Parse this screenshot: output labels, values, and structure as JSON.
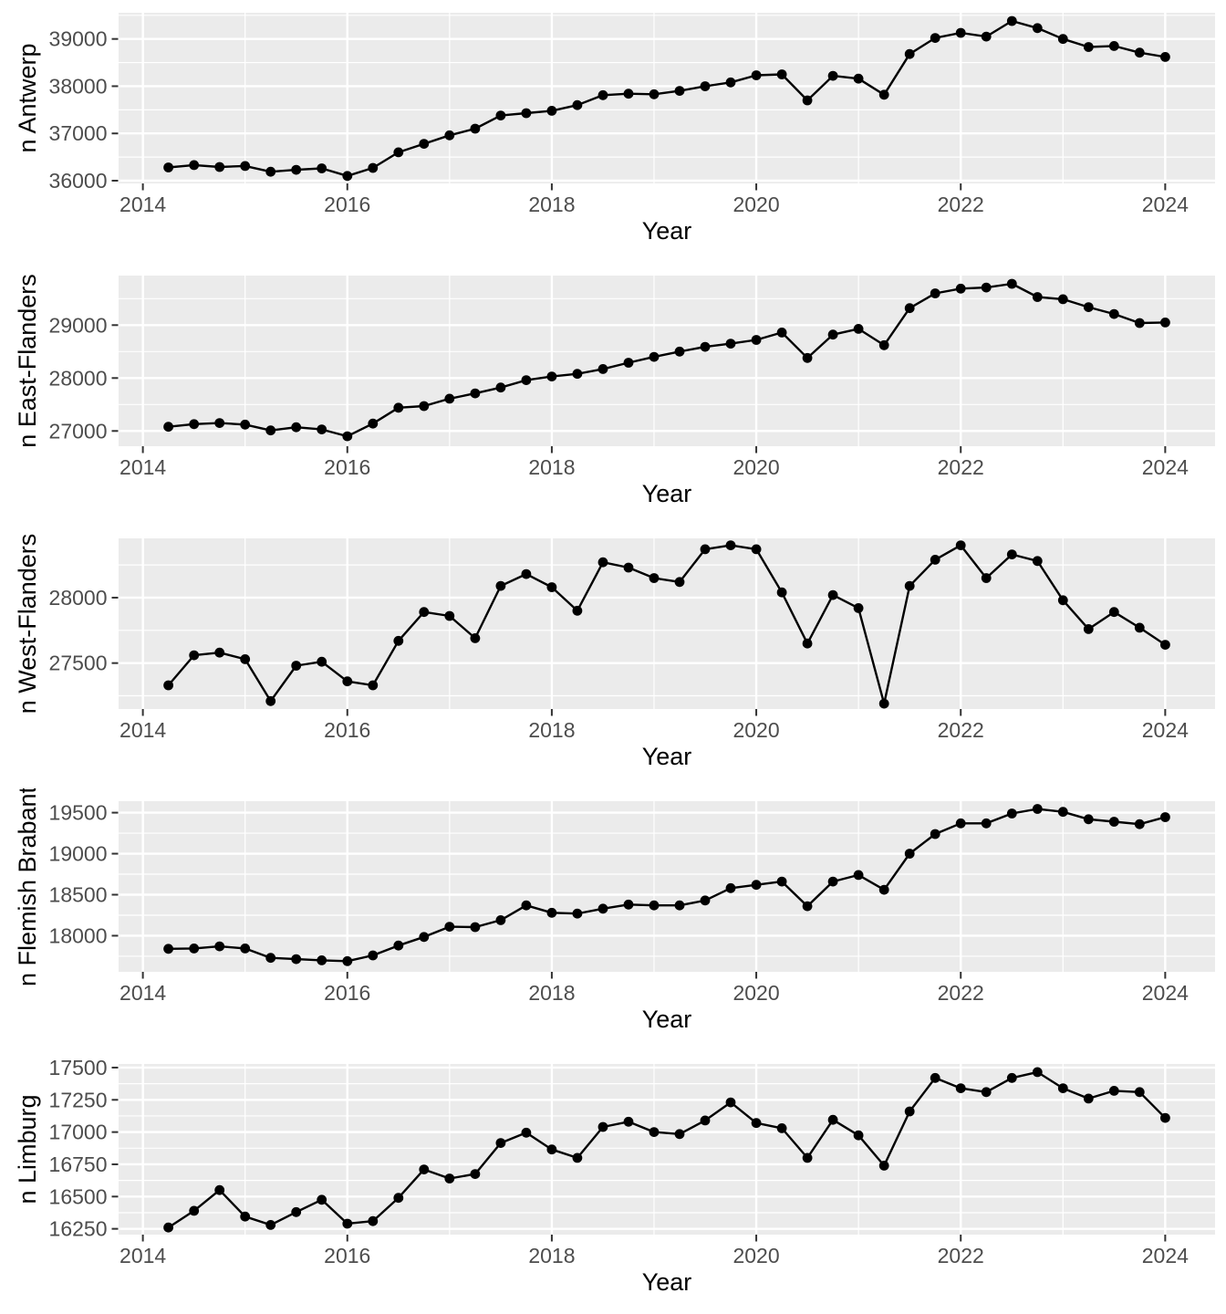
{
  "chart_data": {
    "type": "line",
    "title": "",
    "xlabel": "Year",
    "x": [
      2014.25,
      2014.5,
      2014.75,
      2015.0,
      2015.25,
      2015.5,
      2015.75,
      2016.0,
      2016.25,
      2016.5,
      2016.75,
      2017.0,
      2017.25,
      2017.5,
      2017.75,
      2018.0,
      2018.25,
      2018.5,
      2018.75,
      2019.0,
      2019.25,
      2019.5,
      2019.75,
      2020.0,
      2020.25,
      2020.5,
      2020.75,
      2021.0,
      2021.25,
      2021.5,
      2021.75,
      2022.0,
      2022.25,
      2022.5,
      2022.75,
      2023.0,
      2023.25,
      2023.5,
      2023.75,
      2024.0
    ],
    "xlim": [
      2013.7625,
      2024.4875
    ],
    "xticks": [
      2014,
      2016,
      2018,
      2020,
      2022,
      2024
    ],
    "xtick_labels": [
      "2014",
      "2016",
      "2018",
      "2020",
      "2022",
      "2024"
    ],
    "xminor": [
      2015,
      2017,
      2019,
      2021,
      2023
    ],
    "grid": true,
    "legend": "none",
    "panels": [
      {
        "ylabel": "n Antwerp",
        "ylim": [
          35942,
          39554
        ],
        "yticks": [
          36000,
          37000,
          38000,
          39000
        ],
        "ytick_labels": [
          "36000",
          "37000",
          "38000",
          "39000"
        ],
        "yminor": [
          36500,
          37500,
          38500,
          39500
        ],
        "values": [
          36280,
          36330,
          36290,
          36310,
          36190,
          36230,
          36260,
          36100,
          36270,
          36600,
          36780,
          36960,
          37100,
          37380,
          37430,
          37480,
          37600,
          37810,
          37840,
          37830,
          37900,
          38000,
          38080,
          38230,
          38250,
          37700,
          38220,
          38160,
          37820,
          38680,
          39020,
          39130,
          39050,
          39380,
          39230,
          39000,
          38830,
          38850,
          38710,
          38620
        ]
      },
      {
        "ylabel": "n East-Flanders",
        "ylim": [
          26712,
          29936
        ],
        "yticks": [
          27000,
          28000,
          29000
        ],
        "ytick_labels": [
          "27000",
          "28000",
          "29000"
        ],
        "yminor": [
          27500,
          28500,
          29500
        ],
        "values": [
          27080,
          27130,
          27150,
          27120,
          27010,
          27070,
          27030,
          26900,
          27140,
          27440,
          27470,
          27610,
          27710,
          27820,
          27960,
          28030,
          28080,
          28170,
          28290,
          28400,
          28500,
          28590,
          28650,
          28720,
          28860,
          28380,
          28820,
          28930,
          28620,
          29320,
          29600,
          29690,
          29710,
          29780,
          29530,
          29490,
          29340,
          29210,
          29040,
          29050
        ]
      },
      {
        "ylabel": "n West-Flanders",
        "ylim": [
          27149,
          28453
        ],
        "yticks": [
          27500,
          28000
        ],
        "ytick_labels": [
          "27500",
          "28000"
        ],
        "yminor": [
          27250,
          27750,
          28250
        ],
        "values": [
          27330,
          27560,
          27580,
          27530,
          27210,
          27480,
          27510,
          27360,
          27330,
          27670,
          27890,
          27860,
          27690,
          28090,
          28180,
          28080,
          27900,
          28270,
          28230,
          28150,
          28120,
          28370,
          28400,
          28370,
          28040,
          27650,
          28020,
          27920,
          27190,
          28090,
          28290,
          28400,
          28150,
          28330,
          28280,
          27980,
          27760,
          27890,
          27770,
          27640
        ]
      },
      {
        "ylabel": "n Flemish Brabant",
        "ylim": [
          17560,
          19640
        ],
        "yticks": [
          18000,
          18500,
          19000,
          19500
        ],
        "ytick_labels": [
          "18000",
          "18500",
          "19000",
          "19500"
        ],
        "yminor": [
          17750,
          18250,
          18750,
          19250
        ],
        "values": [
          17840,
          17845,
          17870,
          17845,
          17730,
          17715,
          17700,
          17690,
          17760,
          17880,
          17985,
          18110,
          18105,
          18190,
          18370,
          18280,
          18270,
          18330,
          18380,
          18370,
          18370,
          18430,
          18580,
          18620,
          18660,
          18360,
          18660,
          18740,
          18560,
          19000,
          19240,
          19370,
          19370,
          19490,
          19545,
          19510,
          19420,
          19390,
          19360,
          19445
        ]
      },
      {
        "ylabel": "n Limburg",
        "ylim": [
          16205,
          17528
        ],
        "yticks": [
          16250,
          16500,
          16750,
          17000,
          17250,
          17500
        ],
        "ytick_labels": [
          "16250",
          "16500",
          "16750",
          "17000",
          "17250",
          "17500"
        ],
        "yminor": [
          16375,
          16625,
          16875,
          17125,
          17375
        ],
        "values": [
          16260,
          16390,
          16550,
          16345,
          16280,
          16380,
          16475,
          16290,
          16310,
          16490,
          16710,
          16640,
          16675,
          16915,
          16995,
          16865,
          16800,
          17040,
          17080,
          17000,
          16985,
          17090,
          17230,
          17070,
          17030,
          16800,
          17095,
          16975,
          16740,
          17160,
          17420,
          17340,
          17310,
          17420,
          17465,
          17340,
          17260,
          17320,
          17310,
          17110
        ]
      }
    ],
    "styles": {
      "page_bg": "#FFFFFF",
      "panel_bg": "#EBEBEB",
      "grid_color": "#FFFFFF",
      "line_color": "#000000",
      "point_color": "#000000",
      "tick_text_color": "#4D4D4D",
      "axis_title_color": "#000000",
      "tick_mark_color": "#333333"
    }
  }
}
